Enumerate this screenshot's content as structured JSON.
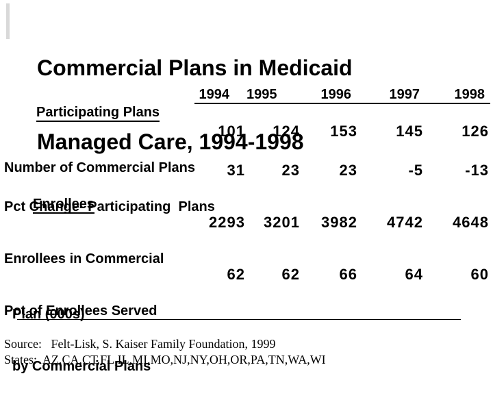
{
  "slide": {
    "title": {
      "line1": "Commercial Plans in Medicaid",
      "line2": "Managed Care, 1994-1998"
    },
    "background_color": "#ffffff",
    "text_color": "#000000",
    "accent_mark_color": "#d9d9d9"
  },
  "table": {
    "year_headers": [
      "1994",
      "1995",
      "1996",
      "1997",
      "1998"
    ],
    "sections": [
      {
        "heading": "Participating Plans",
        "rows": [
          {
            "label_line1": "Number of Commercial Plans",
            "values": [
              "101",
              "124",
              "153",
              "145",
              "126"
            ]
          },
          {
            "label_line1": "Pct Change- Participating  Plans",
            "values": [
              "31",
              "23",
              "23",
              "-5",
              "-13"
            ]
          }
        ]
      },
      {
        "heading": "Enrollees",
        "rows": [
          {
            "label_line1": "Enrollees in Commercial",
            "label_line2": "Plan (000s)",
            "values": [
              "2293",
              "3201",
              "3982",
              "4742",
              "4648"
            ]
          },
          {
            "label_line1": "Pct of Enrollees Served",
            "label_line2": "by Commercial Plans",
            "values": [
              "62",
              "62",
              "66",
              "64",
              "60"
            ]
          }
        ]
      }
    ]
  },
  "footer": {
    "source": "Source:   Felt-Lisk, S. Kaiser Family Foundation, 1999",
    "states": "States:  AZ,CA,CT,FL,IL,MI,MO,NJ,NY,OH,OR,PA,TN,WA,WI"
  },
  "chart_data": {
    "type": "table",
    "title": "Commercial Plans in Medicaid Managed Care, 1994-1998",
    "columns": [
      "1994",
      "1995",
      "1996",
      "1997",
      "1998"
    ],
    "sections": [
      {
        "name": "Participating Plans",
        "rows": [
          {
            "label": "Number of Commercial Plans",
            "values": [
              101,
              124,
              153,
              145,
              126
            ]
          },
          {
            "label": "Pct Change- Participating Plans",
            "values": [
              31,
              23,
              23,
              -5,
              -13
            ]
          }
        ]
      },
      {
        "name": "Enrollees",
        "rows": [
          {
            "label": "Enrollees in Commercial Plan (000s)",
            "values": [
              2293,
              3201,
              3982,
              4742,
              4648
            ]
          },
          {
            "label": "Pct of Enrollees Served by Commercial Plans",
            "values": [
              62,
              62,
              66,
              64,
              60
            ]
          }
        ]
      }
    ],
    "source": "Felt-Lisk, S. Kaiser Family Foundation, 1999",
    "states": [
      "AZ",
      "CA",
      "CT",
      "FL",
      "IL",
      "MI",
      "MO",
      "NJ",
      "NY",
      "OH",
      "OR",
      "PA",
      "TN",
      "WA",
      "WI"
    ]
  }
}
